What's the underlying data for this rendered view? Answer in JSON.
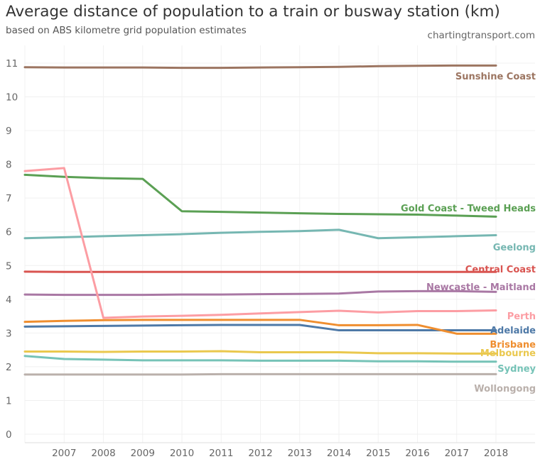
{
  "title": "Average distance of population to a train or busway station (km)",
  "subtitle": "based on ABS kilometre grid population estimates",
  "source": "chartingtransport.com",
  "chart_data": {
    "type": "line",
    "title": "Average distance of population to a train or busway station (km)",
    "subtitle": "based on ABS kilometre grid population estimates",
    "x": [
      2006,
      2007,
      2008,
      2009,
      2010,
      2011,
      2012,
      2013,
      2014,
      2015,
      2016,
      2017,
      2018
    ],
    "xticks": [
      "2007",
      "2008",
      "2009",
      "2010",
      "2011",
      "2012",
      "2013",
      "2014",
      "2015",
      "2016",
      "2017",
      "2018"
    ],
    "yticks": [
      "0",
      "1",
      "2",
      "3",
      "4",
      "5",
      "6",
      "7",
      "8",
      "9",
      "10",
      "11"
    ],
    "xlim": [
      2006,
      2019
    ],
    "ylim": [
      -0.3,
      11.5
    ],
    "grid": true,
    "legend": "direct labels at right end of lines",
    "series": [
      {
        "name": "Sunshine Coast",
        "color": "#9c7561",
        "values": [
          10.88,
          10.87,
          10.87,
          10.87,
          10.86,
          10.86,
          10.87,
          10.88,
          10.89,
          10.91,
          10.92,
          10.93,
          10.93
        ]
      },
      {
        "name": "Gold Coast - Tweed Heads",
        "color": "#5ba054",
        "values": [
          7.69,
          7.63,
          7.59,
          7.57,
          6.61,
          6.59,
          6.57,
          6.55,
          6.53,
          6.52,
          6.51,
          6.48,
          6.45
        ]
      },
      {
        "name": "Geelong",
        "color": "#76b7b2",
        "values": [
          5.81,
          5.84,
          5.87,
          5.9,
          5.93,
          5.97,
          6.0,
          6.02,
          6.06,
          5.81,
          5.84,
          5.87,
          5.9
        ]
      },
      {
        "name": "Central Coast",
        "color": "#d95450",
        "values": [
          4.82,
          4.81,
          4.81,
          4.81,
          4.81,
          4.81,
          4.81,
          4.81,
          4.81,
          4.81,
          4.81,
          4.81,
          4.81
        ]
      },
      {
        "name": "Newcastle - Maitland",
        "color": "#a978a4",
        "values": [
          4.14,
          4.13,
          4.13,
          4.13,
          4.14,
          4.14,
          4.15,
          4.16,
          4.17,
          4.23,
          4.24,
          4.24,
          4.22
        ]
      },
      {
        "name": "Perth",
        "color": "#fc9da3",
        "values": [
          7.8,
          7.89,
          3.45,
          3.49,
          3.51,
          3.54,
          3.58,
          3.62,
          3.66,
          3.61,
          3.65,
          3.65,
          3.67
        ]
      },
      {
        "name": "Adelaide",
        "color": "#4e79a7",
        "values": [
          3.19,
          3.2,
          3.21,
          3.22,
          3.23,
          3.24,
          3.24,
          3.24,
          3.08,
          3.08,
          3.08,
          3.08,
          3.08
        ]
      },
      {
        "name": "Brisbane",
        "color": "#ef8e2f",
        "values": [
          3.33,
          3.36,
          3.38,
          3.39,
          3.39,
          3.39,
          3.39,
          3.39,
          3.23,
          3.23,
          3.24,
          2.98,
          2.98
        ]
      },
      {
        "name": "Melbourne",
        "color": "#eac84e",
        "values": [
          2.45,
          2.45,
          2.44,
          2.45,
          2.45,
          2.46,
          2.43,
          2.43,
          2.43,
          2.4,
          2.4,
          2.39,
          2.39
        ]
      },
      {
        "name": "Sydney",
        "color": "#76c3b7",
        "values": [
          2.32,
          2.23,
          2.21,
          2.19,
          2.19,
          2.19,
          2.18,
          2.18,
          2.18,
          2.16,
          2.16,
          2.15,
          2.15
        ]
      },
      {
        "name": "Wollongong",
        "color": "#bab0ab",
        "values": [
          1.77,
          1.77,
          1.77,
          1.77,
          1.77,
          1.78,
          1.78,
          1.78,
          1.78,
          1.78,
          1.78,
          1.78,
          1.78
        ]
      }
    ]
  }
}
